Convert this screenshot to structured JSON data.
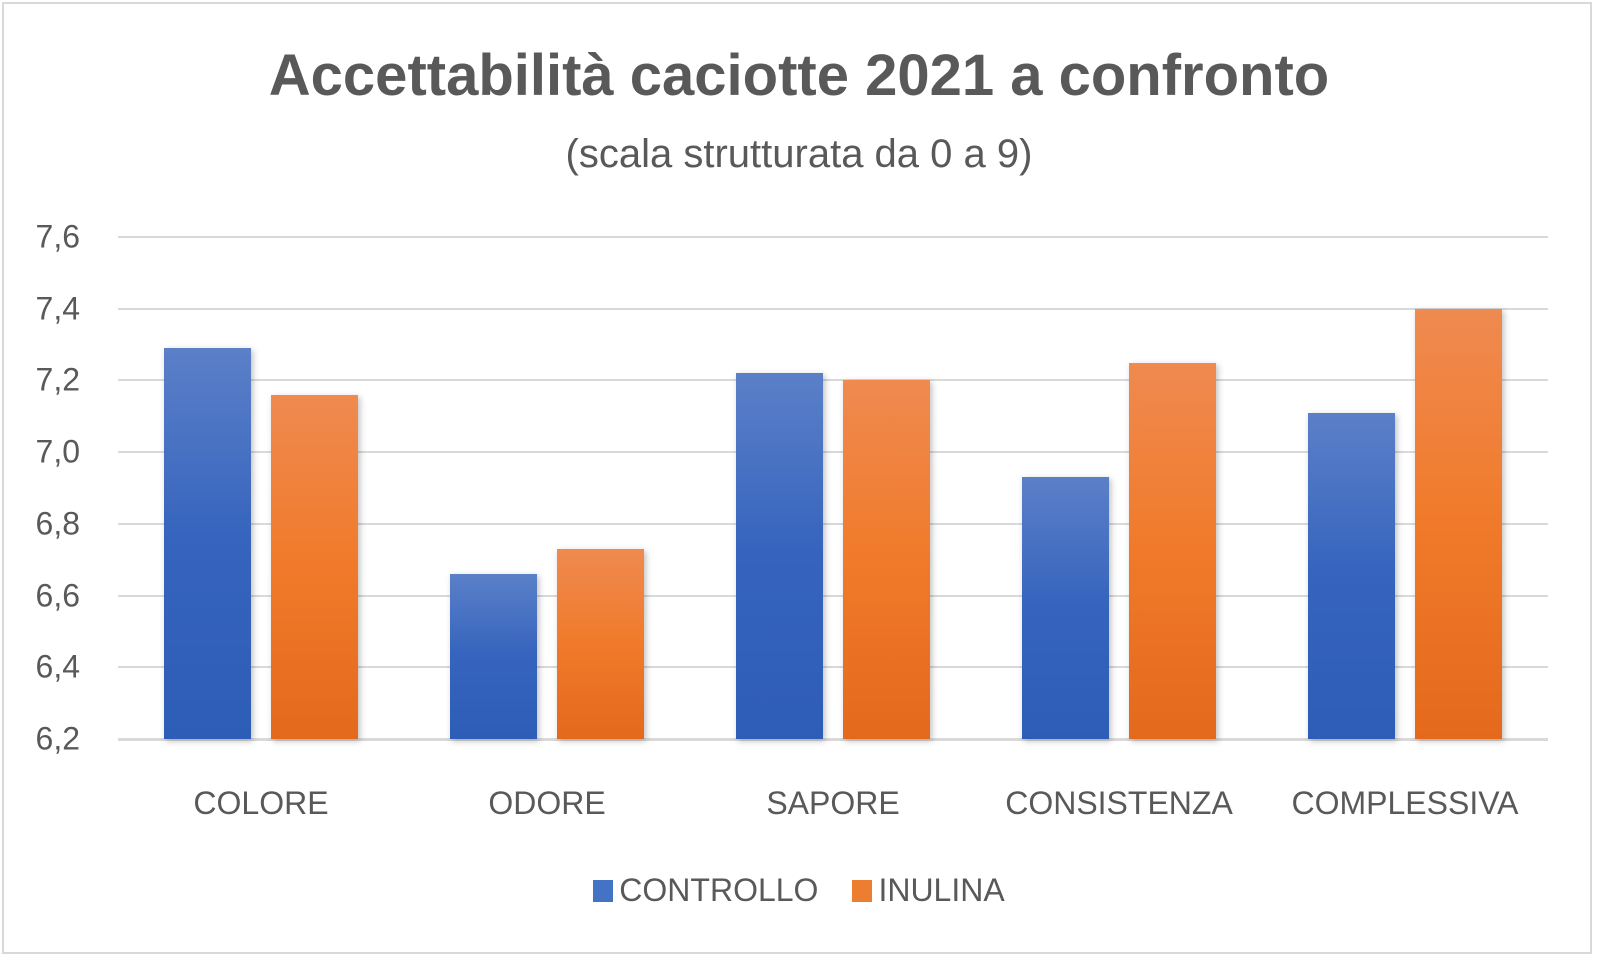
{
  "chart_data": {
    "type": "bar",
    "title": "Accettabilità caciotte 2021 a confronto",
    "subtitle": "(scala strutturata da 0 a 9)",
    "xlabel": "",
    "ylabel": "",
    "ylim": [
      6.2,
      7.6
    ],
    "yticks": [
      "7,6",
      "7,4",
      "7,2",
      "7,0",
      "6,8",
      "6,6",
      "6,4",
      "6,2"
    ],
    "grid": true,
    "legend_position": "bottom",
    "categories": [
      "COLORE",
      "ODORE",
      "SAPORE",
      "CONSISTENZA",
      "COMPLESSIVA"
    ],
    "series": [
      {
        "name": "CONTROLLO",
        "color": "#4472c4",
        "values": [
          7.29,
          6.66,
          7.22,
          6.93,
          7.11
        ]
      },
      {
        "name": "INULINA",
        "color": "#ed7d31",
        "values": [
          7.16,
          6.73,
          7.2,
          7.25,
          7.4
        ]
      }
    ]
  }
}
